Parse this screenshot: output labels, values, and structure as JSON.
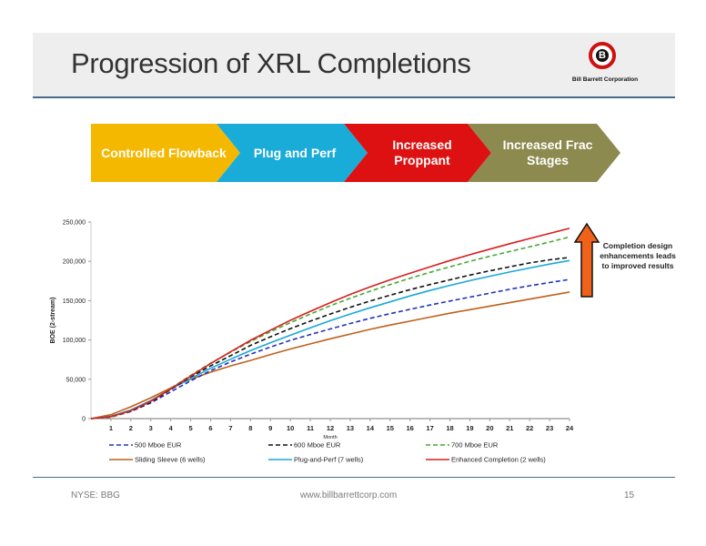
{
  "slide": {
    "title": "Progression of XRL Completions",
    "logo_text": "Bill Barrett Corporation",
    "logo_letter": "B"
  },
  "chevrons": [
    {
      "label": "Controlled Flowback",
      "color": "#f5b800"
    },
    {
      "label": "Plug and Perf",
      "color": "#1aacd9"
    },
    {
      "label": "Increased Proppant",
      "color": "#dd1111"
    },
    {
      "label": "Increased Frac Stages",
      "color": "#8c8a4e"
    }
  ],
  "side_note": "Completion design enhancements leads to improved results",
  "footer": {
    "left": "NYSE: BBG",
    "center": "www.billbarrettcorp.com",
    "right": "15"
  },
  "chart_data": {
    "type": "line",
    "xlabel": "Month",
    "ylabel": "BOE (2-stream)",
    "x": [
      0,
      1,
      2,
      3,
      4,
      5,
      6,
      7,
      8,
      9,
      10,
      11,
      12,
      13,
      14,
      15,
      16,
      17,
      18,
      19,
      20,
      21,
      22,
      23,
      24
    ],
    "xticks": [
      "1",
      "2",
      "3",
      "4",
      "5",
      "6",
      "7",
      "8",
      "9",
      "10",
      "11",
      "12",
      "13",
      "14",
      "15",
      "16",
      "17",
      "18",
      "19",
      "20",
      "21",
      "22",
      "23",
      "24"
    ],
    "yticks": [
      "0",
      "50,000",
      "100,000",
      "150,000",
      "200,000",
      "250,000"
    ],
    "ylim": [
      0,
      250000
    ],
    "grid": false,
    "legend_position": "bottom",
    "series": [
      {
        "name": "500 Mboe EUR",
        "color": "#2233bb",
        "dash": true,
        "values": [
          0,
          2000,
          9000,
          20000,
          34000,
          48000,
          61000,
          72000,
          82000,
          91000,
          99500,
          107000,
          114000,
          121000,
          127500,
          133500,
          139000,
          144500,
          149500,
          154500,
          159500,
          164500,
          169000,
          173000,
          177000
        ]
      },
      {
        "name": "600 Mboe EUR",
        "color": "#111111",
        "dash": true,
        "values": [
          0,
          2000,
          9500,
          21000,
          37000,
          53000,
          67000,
          80000,
          93000,
          104000,
          114500,
          124000,
          133000,
          141500,
          149500,
          157000,
          164000,
          170500,
          176500,
          182500,
          188000,
          193000,
          198000,
          202000,
          205000
        ]
      },
      {
        "name": "700 Mboe EUR",
        "color": "#44aa33",
        "dash": true,
        "values": [
          0,
          2000,
          10000,
          22000,
          38500,
          55000,
          70500,
          84500,
          98000,
          110500,
          122000,
          133000,
          143500,
          153000,
          162000,
          170500,
          178500,
          186000,
          193000,
          200000,
          206500,
          212500,
          218500,
          224500,
          231000
        ]
      },
      {
        "name": "Sliding Sleeve (6 wells)",
        "color": "#c0601a",
        "dash": false,
        "values": [
          0,
          5000,
          15000,
          26500,
          39000,
          50000,
          59000,
          67000,
          74000,
          81500,
          88500,
          95000,
          101500,
          107500,
          113500,
          119000,
          124000,
          129000,
          134000,
          138500,
          143000,
          147500,
          152000,
          156500,
          161000
        ]
      },
      {
        "name": "Plug-and-Perf (7 wells)",
        "color": "#1aa9d8",
        "dash": false,
        "values": [
          0,
          3000,
          11000,
          23000,
          37500,
          51000,
          64000,
          75500,
          86500,
          96500,
          106000,
          115500,
          124500,
          133000,
          141000,
          148500,
          156000,
          163000,
          169500,
          175500,
          181000,
          186500,
          191500,
          196500,
          201000
        ]
      },
      {
        "name": "Enhanced Completion (2 wells)",
        "color": "#d91e1e",
        "dash": false,
        "values": [
          0,
          2500,
          10000,
          22000,
          38000,
          54000,
          70000,
          85000,
          99500,
          112500,
          125000,
          136500,
          147500,
          158000,
          167500,
          176500,
          185000,
          193000,
          201000,
          208500,
          215500,
          222500,
          229000,
          235500,
          242000
        ]
      }
    ]
  }
}
